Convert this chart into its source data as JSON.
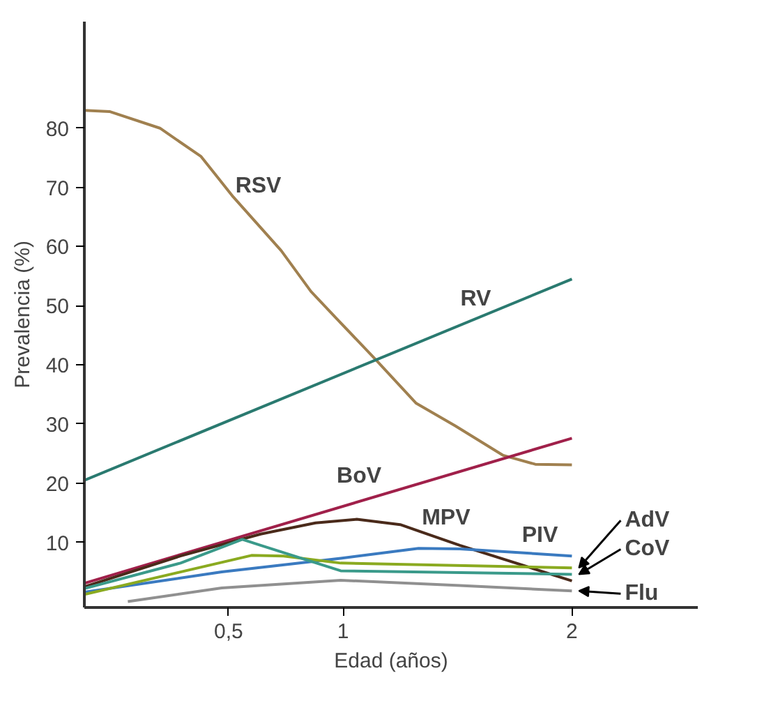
{
  "chart_data": {
    "type": "line",
    "xlabel": "Edad (años)",
    "ylabel": "Prevalencia (%)",
    "xlim": [
      -0.13,
      2.55
    ],
    "ylim": [
      -1,
      98
    ],
    "xticks": [
      {
        "value": 0.5,
        "label": "0,5"
      },
      1,
      2
    ],
    "yticks": [
      10,
      20,
      30,
      40,
      50,
      60,
      70,
      80
    ],
    "grid": false,
    "marker": "none",
    "line_style": "solid",
    "series": [
      {
        "name": "RSV",
        "color": "#a0804f",
        "x": [
          -0.13,
          -0.02,
          0.2,
          0.38,
          0.52,
          0.73,
          0.86,
          0.97,
          1.14,
          1.32,
          1.49,
          1.7,
          1.84,
          2.0
        ],
        "values": [
          83,
          82.8,
          80,
          75.2,
          68.4,
          59.3,
          52.4,
          47.9,
          41,
          33.5,
          29.7,
          24.7,
          23.2,
          23.1
        ]
      },
      {
        "name": "RV",
        "color": "#2a7a70",
        "x": [
          -0.13,
          2.0
        ],
        "values": [
          20.5,
          54.5
        ]
      },
      {
        "name": "BoV",
        "color": "#a0204a",
        "x": [
          -0.13,
          2.0
        ],
        "values": [
          3.1,
          27.6
        ]
      },
      {
        "name": "MPV",
        "color": "#4a2a1a",
        "x": [
          -0.13,
          0.29,
          0.64,
          0.88,
          1.06,
          1.25,
          1.51,
          2.0
        ],
        "values": [
          2.5,
          7.7,
          11.4,
          13.3,
          13.9,
          13,
          9.5,
          3.5
        ]
      },
      {
        "name": "PIV",
        "color": "#3a7ac0",
        "x": [
          -0.13,
          0.47,
          0.99,
          1.33,
          1.51,
          2.0
        ],
        "values": [
          1.6,
          5,
          7.3,
          9,
          8.9,
          7.7
        ]
      },
      {
        "name": "AdV",
        "color": "#8aaa20",
        "x": [
          -0.13,
          0.6,
          0.74,
          0.99,
          2.0
        ],
        "values": [
          1.2,
          7.8,
          7.7,
          6.5,
          5.7
        ]
      },
      {
        "name": "CoV",
        "color": "#3a9a8a",
        "x": [
          -0.13,
          0.29,
          0.56,
          0.64,
          0.99,
          2.0
        ],
        "values": [
          2.2,
          6.5,
          10.5,
          9.5,
          5.2,
          4.6
        ]
      },
      {
        "name": "Flu",
        "color": "#909090",
        "x": [
          0.06,
          0.47,
          0.99,
          1.51,
          2.0
        ],
        "values": [
          0,
          2.3,
          3.6,
          2.7,
          1.8
        ]
      }
    ]
  }
}
